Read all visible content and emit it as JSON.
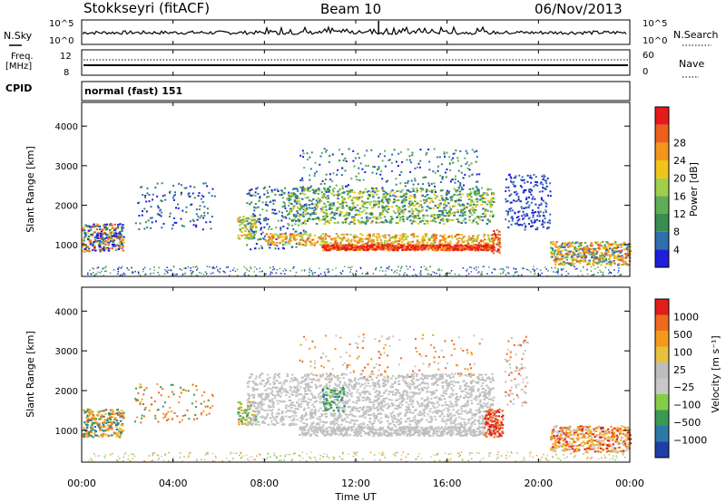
{
  "header": {
    "station": "Stokkseyri (fitACF)",
    "beam": "Beam 10",
    "date": "06/Nov/2013"
  },
  "strip": {
    "nsky_label": "N.Sky",
    "nsky_ticks": [
      "10^5",
      "10^0"
    ],
    "nsearch_label": "N.Search",
    "nsearch_ticks": [
      "10^5",
      "10^0"
    ],
    "freq_label_1": "Freq.",
    "freq_label_2": "[MHz]",
    "freq_ticks": [
      "12",
      "8"
    ],
    "nave_label": "Nave",
    "nave_ticks": [
      "60",
      "0"
    ],
    "cpid_label": "CPID",
    "cpid_value": "normal (fast) 151"
  },
  "colors": {
    "power_scale": [
      "#1f1fd9",
      "#2f6fae",
      "#3a8c4f",
      "#5fae57",
      "#9ed04a",
      "#f0c419",
      "#f5951e",
      "#ee5f1c",
      "#e51b1b"
    ],
    "velocity_scale": [
      "#1e3fa8",
      "#2e78a8",
      "#3a9a55",
      "#86cc4b",
      "#c8c8c8",
      "#bdbdbd",
      "#e8c040",
      "#f39a1d",
      "#ef6a1e",
      "#e11e1e"
    ]
  },
  "chart_data": [
    {
      "type": "heatmap",
      "name": "Power",
      "ylabel": "Slant Range [km]",
      "xlabel": "Time UT",
      "x_ticks": [
        "00:00",
        "04:00",
        "08:00",
        "12:00",
        "16:00",
        "20:00",
        "00:00"
      ],
      "y_ticks": [
        1000,
        2000,
        3000,
        4000
      ],
      "ylim": [
        200,
        4600
      ],
      "xlim_hours": [
        0,
        24
      ],
      "colorbar_label": "Power [dB]",
      "colorbar_ticks": [
        4,
        8,
        12,
        16,
        20,
        24,
        28
      ],
      "features": [
        {
          "x_start": 0.0,
          "x_end": 1.8,
          "y_center": 1200,
          "y_half_width": 350,
          "value": 10
        },
        {
          "x_start": 7.0,
          "x_end": 18.2,
          "y_center": 1000,
          "y_half_width": 120,
          "value": 26
        },
        {
          "x_start": 9.0,
          "x_end": 18.0,
          "y_center": 2000,
          "y_half_width": 450,
          "value": 14
        },
        {
          "x_start": 20.5,
          "x_end": 24.0,
          "y_center": 800,
          "y_half_width": 300,
          "value": 22
        }
      ]
    },
    {
      "type": "heatmap",
      "name": "Velocity",
      "ylabel": "Slant Range [km]",
      "xlabel": "Time UT",
      "x_ticks": [
        "00:00",
        "04:00",
        "08:00",
        "12:00",
        "16:00",
        "20:00",
        "00:00"
      ],
      "y_ticks": [
        1000,
        2000,
        3000,
        4000
      ],
      "ylim": [
        200,
        4600
      ],
      "xlim_hours": [
        0,
        24
      ],
      "colorbar_label": "Velocity [m s⁻¹]",
      "colorbar_ticks": [
        "1000",
        "500",
        "100",
        "25",
        "−25",
        "−100",
        "−500",
        "−1000"
      ]
    }
  ]
}
